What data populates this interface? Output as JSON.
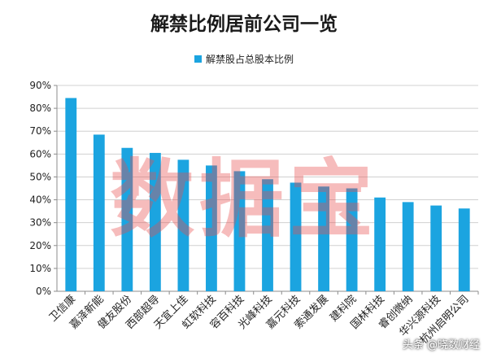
{
  "chart_data": {
    "type": "bar",
    "title": "解禁比例居前公司一览",
    "legend": "top",
    "grid": true,
    "categories": [
      "卫信康",
      "嘉泽新能",
      "健友股份",
      "西部超导",
      "天宜上佳",
      "虹软科技",
      "容百科技",
      "光峰科技",
      "嘉元科技",
      "索通发展",
      "建科院",
      "国林科技",
      "睿创微纳",
      "华兴源科技",
      "杭州启明公司"
    ],
    "series": [
      {
        "name": "解禁股占总股本比例",
        "values": [
          0.845,
          0.685,
          0.627,
          0.605,
          0.575,
          0.55,
          0.525,
          0.49,
          0.475,
          0.458,
          0.45,
          0.41,
          0.39,
          0.375,
          0.362
        ]
      }
    ],
    "ylim": [
      0,
      0.9
    ],
    "yticks": [
      "0%",
      "10%",
      "20%",
      "30%",
      "40%",
      "50%",
      "60%",
      "70%",
      "80%",
      "90%"
    ],
    "bar_color": "#1BA4E0"
  },
  "watermark": "数据宝",
  "credit": "头条 @晓数财经"
}
